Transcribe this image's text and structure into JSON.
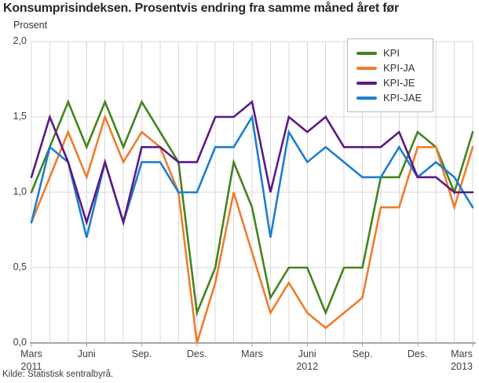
{
  "title": "Konsumprisindeksen. Prosentvis endring fra samme måned året før",
  "source": "Kilde: Statistisk sentralbyrå.",
  "chart_data": {
    "type": "line",
    "title": "Konsumprisindeksen. Prosentvis endring fra samme måned året før",
    "xlabel": "",
    "ylabel": "Prosent",
    "ylim": [
      0,
      2
    ],
    "grid": true,
    "legend_position": "top-right-inside",
    "categories": [
      "mar-11",
      "apr-11",
      "mai-11",
      "jun-11",
      "jul-11",
      "aug-11",
      "sep-11",
      "okt-11",
      "nov-11",
      "des-11",
      "jan-12",
      "feb-12",
      "mar-12",
      "apr-12",
      "mai-12",
      "jun-12",
      "jul-12",
      "aug-12",
      "sep-12",
      "okt-12",
      "nov-12",
      "des-12",
      "jan-13",
      "feb-13",
      "mar-13"
    ],
    "y_ticks": [
      {
        "v": 0.0,
        "label": "0,0"
      },
      {
        "v": 0.5,
        "label": "0,5"
      },
      {
        "v": 1.0,
        "label": "1,0"
      },
      {
        "v": 1.5,
        "label": "1,5"
      },
      {
        "v": 2.0,
        "label": "2,0"
      }
    ],
    "x_ticks": [
      {
        "index": 0,
        "label": "Mars",
        "year": "2011"
      },
      {
        "index": 3,
        "label": "Juni",
        "year": ""
      },
      {
        "index": 6,
        "label": "Sep.",
        "year": ""
      },
      {
        "index": 9,
        "label": "Des.",
        "year": ""
      },
      {
        "index": 12,
        "label": "Mars",
        "year": ""
      },
      {
        "index": 15,
        "label": "Juni",
        "year": "2012"
      },
      {
        "index": 18,
        "label": "Sep.",
        "year": ""
      },
      {
        "index": 21,
        "label": "Des.",
        "year": ""
      },
      {
        "index": 24,
        "label": "Mars",
        "year": "2013"
      }
    ],
    "series": [
      {
        "name": "KPI",
        "color": "#44831e",
        "values": [
          1.0,
          1.3,
          1.6,
          1.3,
          1.6,
          1.3,
          1.6,
          1.4,
          1.2,
          0.2,
          0.5,
          1.2,
          0.9,
          0.3,
          0.5,
          0.5,
          0.2,
          0.5,
          0.5,
          1.1,
          1.1,
          1.4,
          1.3,
          1.0,
          1.4
        ]
      },
      {
        "name": "KPI-JA",
        "color": "#ef7d2c",
        "values": [
          0.8,
          1.1,
          1.4,
          1.1,
          1.5,
          1.2,
          1.4,
          1.3,
          1.0,
          0.0,
          0.4,
          1.0,
          0.6,
          0.2,
          0.4,
          0.2,
          0.1,
          0.2,
          0.3,
          0.9,
          0.9,
          1.3,
          1.3,
          0.9,
          1.3
        ]
      },
      {
        "name": "KPI-JE",
        "color": "#5b1a85",
        "values": [
          1.1,
          1.5,
          1.2,
          0.8,
          1.2,
          0.8,
          1.3,
          1.3,
          1.2,
          1.2,
          1.5,
          1.5,
          1.6,
          1.0,
          1.5,
          1.4,
          1.5,
          1.3,
          1.3,
          1.3,
          1.4,
          1.1,
          1.1,
          1.0,
          1.0
        ]
      },
      {
        "name": "KPI-JAE",
        "color": "#1d7ed1",
        "values": [
          0.8,
          1.3,
          1.2,
          0.7,
          1.2,
          0.8,
          1.2,
          1.2,
          1.0,
          1.0,
          1.3,
          1.3,
          1.5,
          0.7,
          1.4,
          1.2,
          1.3,
          1.2,
          1.1,
          1.1,
          1.3,
          1.1,
          1.2,
          1.1,
          0.9
        ]
      }
    ],
    "palette": {
      "grid": "#d8d8d8",
      "axis": "#a8a8a8",
      "tick_text": "#404040",
      "title_text": "#262626"
    }
  }
}
